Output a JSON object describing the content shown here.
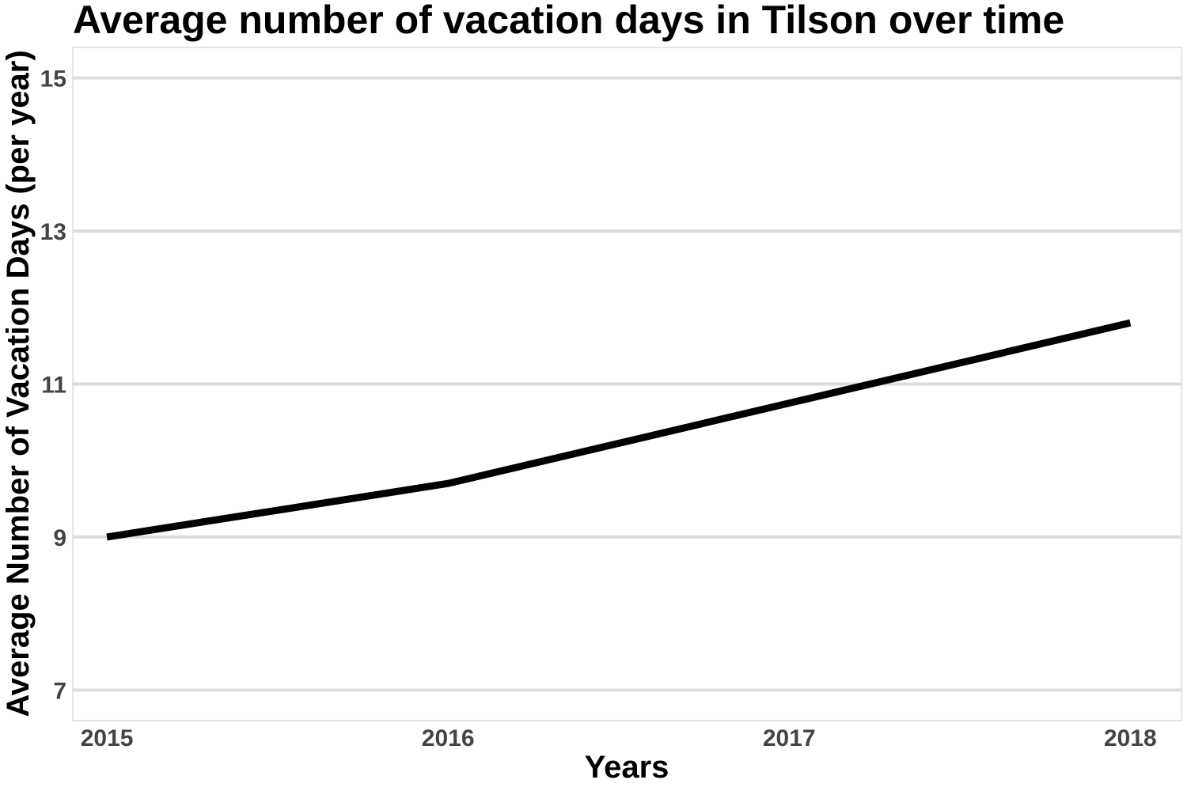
{
  "chart_data": {
    "type": "line",
    "title": "Average number of vacation days in Tilson over time",
    "xlabel": "Years",
    "ylabel": "Average Number of Vacation Days (per year)",
    "categories": [
      "2015",
      "2016",
      "2017",
      "2018"
    ],
    "values": [
      9.0,
      9.7,
      10.75,
      11.8
    ],
    "xlim": [
      2014.9,
      2018.15
    ],
    "ylim": [
      6.6,
      15.4
    ],
    "yticks": [
      7,
      9,
      11,
      13,
      15
    ],
    "ytick_labels": [
      "7",
      "9",
      "11",
      "13",
      "15"
    ],
    "grid": "horizontal",
    "legend": "none",
    "colors": {
      "line": "#000000",
      "grid": "#dddddd",
      "frame": "#cccccc",
      "tick_text": "#444444"
    }
  }
}
